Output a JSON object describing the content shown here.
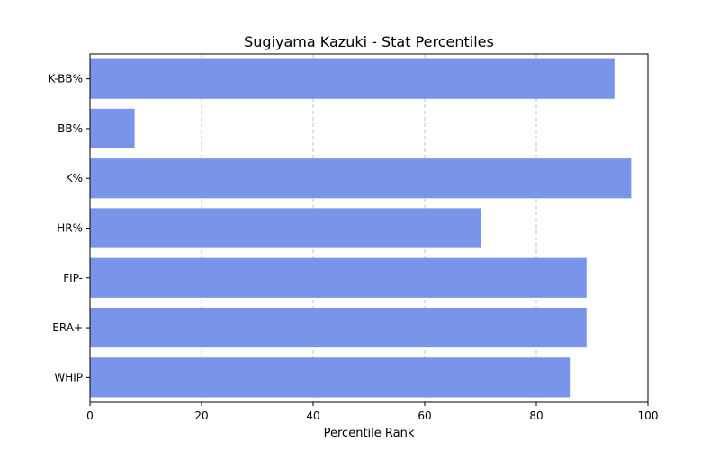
{
  "chart_data": {
    "type": "bar",
    "orientation": "horizontal",
    "title": "Sugiyama Kazuki - Stat Percentiles",
    "xlabel": "Percentile Rank",
    "ylabel": "",
    "xlim": [
      0,
      100
    ],
    "xticks": [
      0,
      20,
      40,
      60,
      80,
      100
    ],
    "grid": "x-dashed",
    "bar_color": "#7995e9",
    "categories": [
      "K-BB%",
      "BB%",
      "K%",
      "HR%",
      "FIP-",
      "ERA+",
      "WHIP"
    ],
    "values": [
      94,
      8,
      97,
      70,
      89,
      89,
      86
    ]
  }
}
